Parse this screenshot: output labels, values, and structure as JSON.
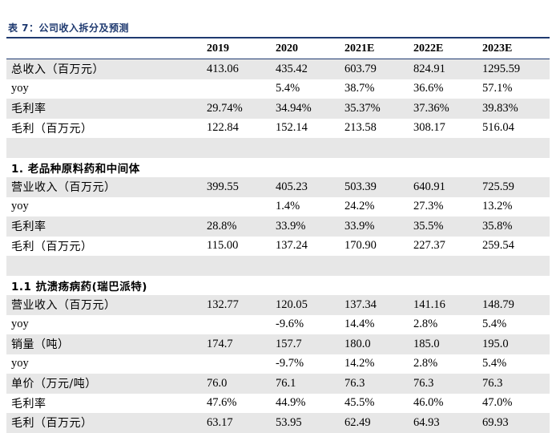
{
  "caption": "表 7：公司收入拆分及预测",
  "columns": [
    "",
    "2019",
    "2020",
    "2021E",
    "2022E",
    "2023E"
  ],
  "rows": [
    {
      "type": "data",
      "shade": true,
      "label": "总收入（百万元）",
      "values": [
        "413.06",
        "435.42",
        "603.79",
        "824.91",
        "1295.59"
      ]
    },
    {
      "type": "data",
      "shade": false,
      "label": "yoy",
      "values": [
        "",
        "5.4%",
        "38.7%",
        "36.6%",
        "57.1%"
      ]
    },
    {
      "type": "data",
      "shade": true,
      "label": "毛利率",
      "values": [
        "29.74%",
        "34.94%",
        "35.37%",
        "37.36%",
        "39.83%"
      ]
    },
    {
      "type": "data",
      "shade": false,
      "label": "毛利（百万元）",
      "values": [
        "122.84",
        "152.14",
        "213.58",
        "308.17",
        "516.04"
      ]
    },
    {
      "type": "blank",
      "shade": true,
      "label": "",
      "values": [
        "",
        "",
        "",
        "",
        ""
      ]
    },
    {
      "type": "section",
      "shade": false,
      "label": "1. 老品种原料药和中间体",
      "values": [
        "",
        "",
        "",
        "",
        ""
      ]
    },
    {
      "type": "data",
      "shade": true,
      "label": "营业收入（百万元）",
      "values": [
        "399.55",
        "405.23",
        "503.39",
        "640.91",
        "725.59"
      ]
    },
    {
      "type": "data",
      "shade": false,
      "label": "yoy",
      "values": [
        "",
        "1.4%",
        "24.2%",
        "27.3%",
        "13.2%"
      ]
    },
    {
      "type": "data",
      "shade": true,
      "label": "毛利率",
      "values": [
        "28.8%",
        "33.9%",
        "33.9%",
        "35.5%",
        "35.8%"
      ]
    },
    {
      "type": "data",
      "shade": false,
      "label": "毛利（百万元）",
      "values": [
        "115.00",
        "137.24",
        "170.90",
        "227.37",
        "259.54"
      ]
    },
    {
      "type": "blank",
      "shade": true,
      "label": "",
      "values": [
        "",
        "",
        "",
        "",
        ""
      ]
    },
    {
      "type": "section",
      "shade": false,
      "label": "1.1 抗溃疡病药(瑞巴派特)",
      "values": [
        "",
        "",
        "",
        "",
        ""
      ]
    },
    {
      "type": "data",
      "shade": true,
      "label": "营业收入（百万元）",
      "values": [
        "132.77",
        "120.05",
        "137.34",
        "141.16",
        "148.79"
      ]
    },
    {
      "type": "data",
      "shade": false,
      "label": "yoy",
      "values": [
        "",
        "-9.6%",
        "14.4%",
        "2.8%",
        "5.4%"
      ]
    },
    {
      "type": "data",
      "shade": true,
      "label": "销量（吨）",
      "values": [
        "174.7",
        "157.7",
        "180.0",
        "185.0",
        "195.0"
      ]
    },
    {
      "type": "data",
      "shade": false,
      "label": "yoy",
      "values": [
        "",
        "-9.7%",
        "14.2%",
        "2.8%",
        "5.4%"
      ]
    },
    {
      "type": "data",
      "shade": true,
      "label": "单价（万元/吨）",
      "values": [
        "76.0",
        "76.1",
        "76.3",
        "76.3",
        "76.3"
      ]
    },
    {
      "type": "data",
      "shade": false,
      "label": "毛利率",
      "values": [
        "47.6%",
        "44.9%",
        "45.5%",
        "46.0%",
        "47.0%"
      ]
    },
    {
      "type": "data",
      "shade": true,
      "label": "毛利（百万元）",
      "values": [
        "63.17",
        "53.95",
        "62.49",
        "64.93",
        "69.93"
      ]
    }
  ]
}
